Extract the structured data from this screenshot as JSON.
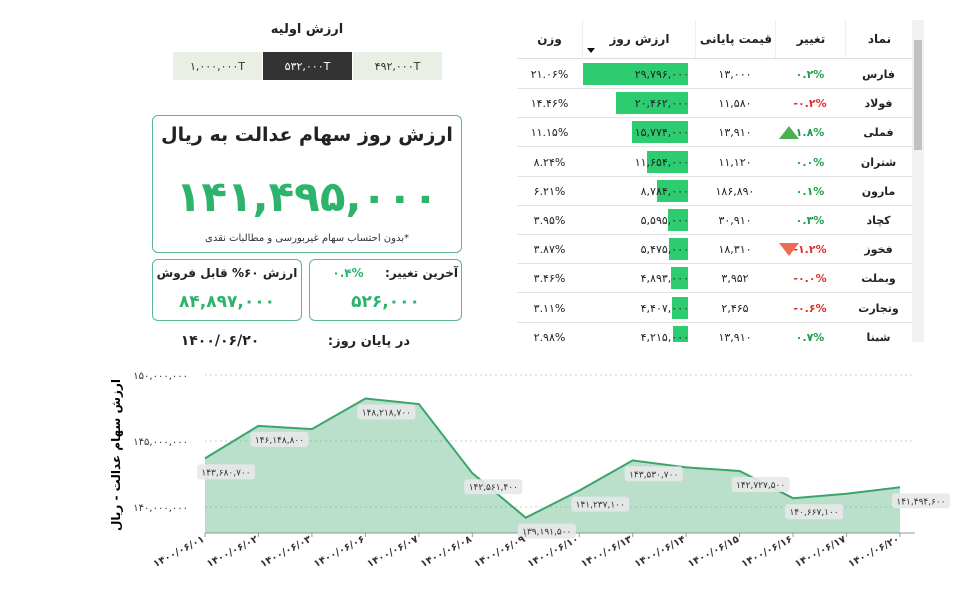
{
  "initial_value": {
    "title": "ارزش اولیه",
    "options": [
      "۴۹۲,۰۰۰T",
      "۵۳۲,۰۰۰T",
      "۱,۰۰۰,۰۰۰T"
    ],
    "active": 1
  },
  "summary": {
    "title": "ارزش روز سهام عدالت به ریال",
    "value": "۱۴۱,۴۹۵,۰۰۰",
    "note": "*بدون احتساب سهام غیربورسی و مطالبات نقدی",
    "change_label": "آخرین تغییر:",
    "change_percent": "۰.۴%",
    "change_value": "۵۲۶,۰۰۰",
    "sellable_label": "ارزش ۶۰% قابل فروش",
    "sellable_value": "۸۴,۸۹۷,۰۰۰",
    "end_of_day_label": "در پایان روز:",
    "end_of_day_date": "۱۴۰۰/۰۶/۲۰"
  },
  "table": {
    "columns": [
      "نماد",
      "تغییر",
      "قیمت پایانی",
      "ارزش روز",
      "وزن"
    ],
    "rows": [
      [
        "فارس",
        "۰.۲%",
        "۱۳,۰۰۰",
        "۲۹,۷۹۶,۰۰۰",
        "۲۱.۰۶%"
      ],
      [
        "فولاد",
        "-۰.۲%",
        "۱۱,۵۸۰",
        "۲۰,۴۶۲,۰۰۰",
        "۱۴.۴۶%"
      ],
      [
        "فملی",
        "۱.۸%",
        "۱۳,۹۱۰",
        "۱۵,۷۷۴,۰۰۰",
        "۱۱.۱۵%"
      ],
      [
        "شتران",
        "۰.۰%",
        "۱۱,۱۲۰",
        "۱۱,۶۵۴,۰۰۰",
        "۸.۲۴%"
      ],
      [
        "مارون",
        "۰.۱%",
        "۱۸۶,۸۹۰",
        "۸,۷۸۴,۰۰۰",
        "۶.۲۱%"
      ],
      [
        "کچاد",
        "۰.۳%",
        "۳۰,۹۱۰",
        "۵,۵۹۵,۰۰۰",
        "۳.۹۵%"
      ],
      [
        "فخوز",
        "-۱.۲%",
        "۱۸,۳۱۰",
        "۵,۴۷۵,۰۰۰",
        "۳.۸۷%"
      ],
      [
        "وبملت",
        "-۰.۰%",
        "۳,۹۵۲",
        "۴,۸۹۳,۰۰۰",
        "۳.۴۶%"
      ],
      [
        "وتجارت",
        "-۰.۶%",
        "۲,۴۶۵",
        "۴,۴۰۷,۰۰۰",
        "۳.۱۱%"
      ],
      [
        "شپنا",
        "۰.۷%",
        "۱۳,۹۱۰",
        "۴,۲۱۵,۰۰۰",
        "۲.۹۸%"
      ]
    ],
    "arrows": [
      null,
      null,
      "up",
      null,
      null,
      null,
      "down",
      null,
      null,
      null
    ]
  },
  "chart_data": {
    "type": "area",
    "y_label": "ارزش سهام عدالت - ریال",
    "categories": [
      "۱۴۰۰/۰۶/۰۱",
      "۱۴۰۰/۰۶/۰۲",
      "۱۴۰۰/۰۶/۰۳",
      "۱۴۰۰/۰۶/۰۶",
      "۱۴۰۰/۰۶/۰۷",
      "۱۴۰۰/۰۶/۰۸",
      "۱۴۰۰/۰۶/۰۹",
      "۱۴۰۰/۰۶/۱۰",
      "۱۴۰۰/۰۶/۱۳",
      "۱۴۰۰/۰۶/۱۴",
      "۱۴۰۰/۰۶/۱۵",
      "۱۴۰۰/۰۶/۱۶",
      "۱۴۰۰/۰۶/۱۷",
      "۱۴۰۰/۰۶/۲۰"
    ],
    "values": [
      143680700,
      146148800,
      145900000,
      148218700,
      147800000,
      142561400,
      139191500,
      141237100,
      143530700,
      143000000,
      142727500,
      140667100,
      141000000,
      141494600
    ],
    "value_labels": [
      "۱۴۳,۶۸۰,۷۰۰",
      "۱۴۶,۱۴۸,۸۰۰",
      null,
      "۱۴۸,۲۱۸,۷۰۰",
      null,
      "۱۴۲,۵۶۱,۴۰۰",
      "۱۳۹,۱۹۱,۵۰۰",
      "۱۴۱,۲۳۷,۱۰۰",
      "۱۴۳,۵۳۰,۷۰۰",
      null,
      "۱۴۲,۷۲۷,۵۰۰",
      "۱۴۰,۶۶۷,۱۰۰",
      null,
      "۱۴۱,۴۹۴,۶۰۰"
    ],
    "color": "#3aa56a",
    "ylim": [
      139000000,
      150000000
    ],
    "yticks": [
      {
        "value": 140000000,
        "label": "۱۴۰,۰۰۰,۰۰۰"
      },
      {
        "value": 145000000,
        "label": "۱۴۵,۰۰۰,۰۰۰"
      },
      {
        "value": 150000000,
        "label": "۱۵۰,۰۰۰,۰۰۰"
      }
    ],
    "grid": true
  }
}
